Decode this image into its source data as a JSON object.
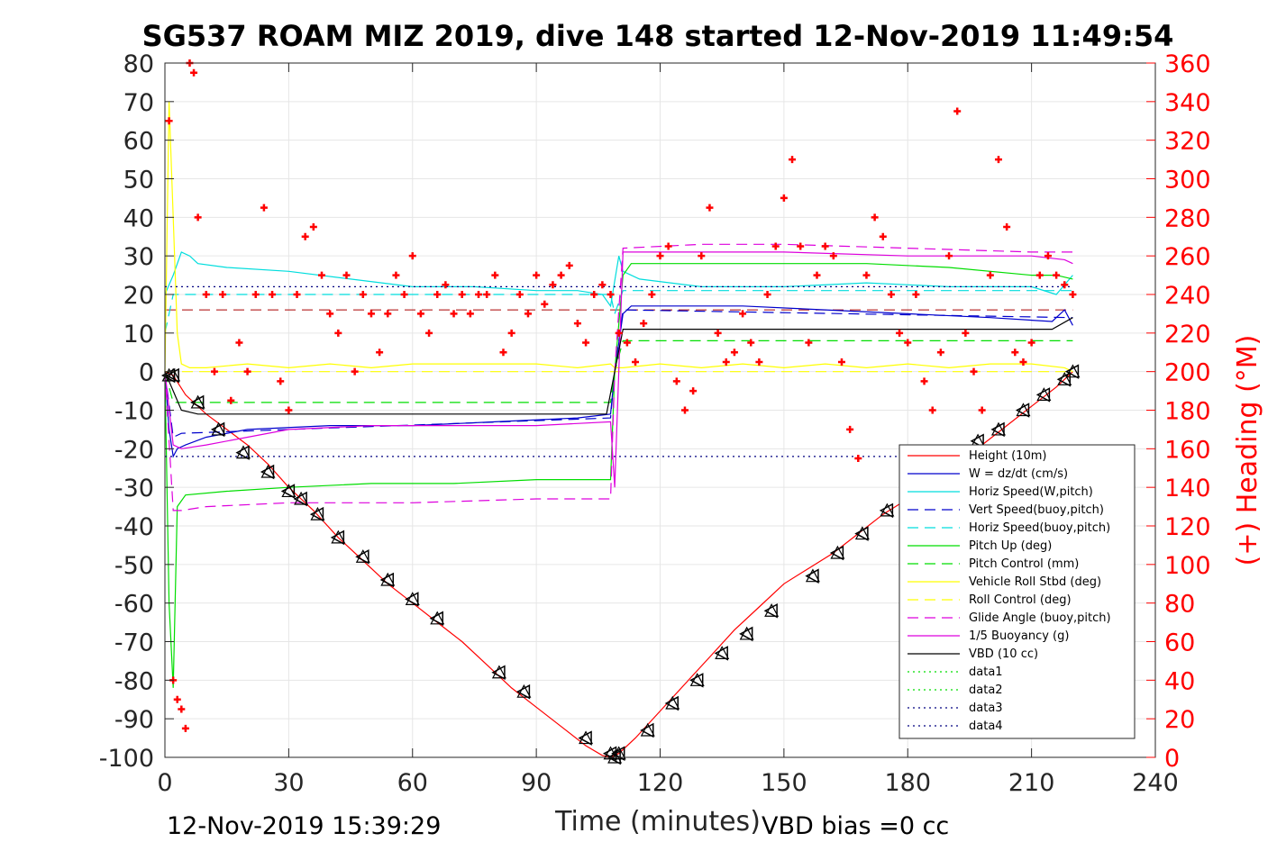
{
  "chart_data": {
    "type": "line",
    "title": "SG537 ROAM MIZ 2019, dive 148 started 12-Nov-2019 11:49:54",
    "xlabel": "Time (minutes)",
    "ylabel_right": "(+) Heading (°M)",
    "xlim": [
      0,
      240
    ],
    "ylim": [
      -100,
      80
    ],
    "ylim_right": [
      0,
      360
    ],
    "x_ticks": [
      "0",
      "30",
      "60",
      "90",
      "120",
      "150",
      "180",
      "210",
      "240"
    ],
    "y_ticks": [
      "80",
      "70",
      "60",
      "50",
      "40",
      "30",
      "20",
      "10",
      "0",
      "-10",
      "-20",
      "-30",
      "-40",
      "-50",
      "-60",
      "-70",
      "-80",
      "-90",
      "-100"
    ],
    "y_ticks_right": [
      "360",
      "340",
      "320",
      "300",
      "280",
      "260",
      "240",
      "220",
      "200",
      "180",
      "160",
      "140",
      "120",
      "100",
      "80",
      "60",
      "40",
      "20",
      "0"
    ],
    "grid": true,
    "legend_position": "bottom-right",
    "footer_left": "12-Nov-2019 15:39:29",
    "footer_right": "VBD bias =0 cc",
    "series": [
      {
        "name": "Height (10m)",
        "color": "#ff0000",
        "style": "solid",
        "x": [
          0,
          2,
          5,
          10,
          15,
          20,
          25,
          30,
          36,
          42,
          48,
          54,
          60,
          66,
          72,
          78,
          84,
          90,
          96,
          102,
          106,
          108,
          110,
          114,
          120,
          126,
          132,
          138,
          144,
          150,
          156,
          162,
          168,
          174,
          180,
          186,
          192,
          198,
          204,
          210,
          216,
          220
        ],
        "y": [
          0,
          -1,
          -6,
          -11,
          -15,
          -19,
          -24,
          -30,
          -36,
          -43,
          -49,
          -55,
          -60,
          -65,
          -70,
          -76,
          -82,
          -87,
          -92,
          -97,
          -99.5,
          -100,
          -99,
          -95,
          -88,
          -81,
          -74,
          -67,
          -61,
          -55,
          -51,
          -47,
          -42,
          -37,
          -33,
          -29,
          -24,
          -19,
          -14,
          -9,
          -4,
          0
        ]
      },
      {
        "name": "W = dz/dt (cm/s)",
        "color": "#0000cc",
        "style": "solid",
        "x": [
          0,
          1,
          2,
          3,
          5,
          10,
          20,
          40,
          60,
          80,
          100,
          108,
          109,
          111,
          113,
          120,
          140,
          160,
          180,
          200,
          215,
          218,
          220
        ],
        "y": [
          0,
          -15,
          -22,
          -20,
          -19,
          -17,
          -15,
          -14,
          -14,
          -13,
          -12,
          -11,
          0,
          15,
          17,
          17,
          17,
          16,
          15,
          14,
          13,
          16,
          12
        ]
      },
      {
        "name": "Horiz Speed(W,pitch)",
        "color": "#00dddd",
        "style": "solid",
        "x": [
          0,
          2,
          4,
          6,
          8,
          15,
          30,
          45,
          60,
          75,
          90,
          100,
          106,
          108,
          110,
          111,
          115,
          130,
          150,
          170,
          190,
          210,
          216,
          220
        ],
        "y": [
          20,
          25,
          31,
          30,
          28,
          27,
          26,
          24,
          22,
          22,
          21,
          21,
          20,
          17,
          30,
          26,
          24,
          22,
          22,
          23,
          22,
          22,
          20,
          25
        ]
      },
      {
        "name": "Vert Speed(buoy,pitch)",
        "color": "#0000cc",
        "style": "dashed",
        "x": [
          0,
          2,
          4,
          108,
          109,
          111,
          220
        ],
        "y": [
          0,
          -17,
          -16,
          -12,
          0,
          16,
          14
        ]
      },
      {
        "name": "Horiz Speed(buoy,pitch)",
        "color": "#00dddd",
        "style": "dashed",
        "x": [
          0,
          2,
          4,
          108,
          109,
          111,
          220
        ],
        "y": [
          10,
          20,
          20,
          20,
          15,
          21,
          21
        ]
      },
      {
        "name": "Pitch Up (deg)",
        "color": "#00dd00",
        "style": "solid",
        "x": [
          0,
          1,
          2,
          3,
          5,
          15,
          30,
          50,
          70,
          90,
          108,
          109,
          111,
          113,
          130,
          150,
          170,
          190,
          210,
          216,
          220
        ],
        "y": [
          0,
          -60,
          -82,
          -35,
          -32,
          -31,
          -30,
          -29,
          -29,
          -28,
          -28,
          0,
          25,
          28,
          28,
          28,
          28,
          27,
          25,
          25,
          24
        ]
      },
      {
        "name": "Pitch Control (mm)",
        "color": "#00dd00",
        "style": "dashed",
        "x": [
          0,
          2,
          4,
          108,
          109,
          111,
          220
        ],
        "y": [
          0,
          -8,
          -8,
          -8,
          0,
          8,
          8
        ]
      },
      {
        "name": "Vehicle Roll Stbd (deg)",
        "color": "#ffff00",
        "style": "solid",
        "x": [
          0,
          1,
          2,
          3,
          4,
          6,
          10,
          20,
          30,
          40,
          50,
          60,
          70,
          80,
          90,
          100,
          108,
          109,
          111,
          120,
          130,
          140,
          150,
          160,
          170,
          180,
          190,
          200,
          210,
          218,
          220
        ],
        "y": [
          0,
          70,
          40,
          10,
          2,
          1,
          1,
          2,
          1,
          2,
          1,
          2,
          2,
          2,
          2,
          1,
          2,
          1,
          1,
          2,
          1,
          2,
          1,
          2,
          1,
          2,
          1,
          2,
          2,
          1,
          0
        ]
      },
      {
        "name": "Roll Control (deg)",
        "color": "#ffff00",
        "style": "dashed",
        "x": [
          0,
          5,
          10,
          20,
          30,
          40,
          50,
          60,
          70,
          80,
          90,
          100,
          110,
          120,
          130,
          140,
          150,
          160,
          170,
          180,
          190,
          200,
          210,
          220
        ],
        "y": [
          0,
          0,
          0,
          0,
          0,
          0,
          0,
          0,
          0,
          0,
          0,
          0,
          0,
          0,
          0,
          0,
          0,
          0,
          0,
          0,
          0,
          0,
          0,
          0
        ]
      },
      {
        "name": "Glide Angle (buoy,pitch)",
        "color": "#dd00dd",
        "style": "dashed",
        "x": [
          0,
          2,
          4,
          10,
          30,
          60,
          90,
          108,
          109,
          111,
          130,
          150,
          180,
          210,
          220
        ],
        "y": [
          0,
          -36,
          -36,
          -35,
          -34,
          -34,
          -33,
          -33,
          0,
          32,
          33,
          33,
          32,
          31,
          31
        ]
      },
      {
        "name": "1/5 Buoyancy (g)",
        "color": "#dd00dd",
        "style": "solid",
        "x": [
          0,
          2,
          4,
          10,
          20,
          30,
          50,
          70,
          90,
          108,
          109,
          111,
          130,
          150,
          180,
          210,
          218,
          220
        ],
        "y": [
          0,
          -19,
          -20,
          -19,
          -17,
          -15,
          -14,
          -14,
          -14,
          -13,
          -30,
          31,
          31,
          31,
          30,
          30,
          29,
          28
        ]
      },
      {
        "name": "VBD (10 cc)",
        "color": "#000000",
        "style": "solid",
        "x": [
          0,
          2,
          4,
          8,
          107,
          109,
          111,
          215,
          220
        ],
        "y": [
          0,
          -5,
          -10,
          -11,
          -11,
          0,
          11,
          11,
          14
        ]
      },
      {
        "name": "data1",
        "color": "#00dd00",
        "style": "dotted",
        "x": [],
        "y": []
      },
      {
        "name": "data2",
        "color": "#00dd00",
        "style": "dotted",
        "x": [],
        "y": []
      },
      {
        "name": "data3",
        "color": "#000080",
        "style": "dotted",
        "x": [
          0,
          220
        ],
        "y": [
          -22,
          -22
        ]
      },
      {
        "name": "data4",
        "color": "#000080",
        "style": "dotted",
        "x": [
          0,
          220
        ],
        "y": [
          22,
          22
        ]
      }
    ],
    "reference_line": {
      "color": "#aa0000",
      "style": "dashed",
      "y": 16
    },
    "heading": {
      "color": "#ff0000",
      "marker": "+",
      "x": [
        1,
        2,
        3,
        4,
        5,
        6,
        7,
        8,
        10,
        12,
        14,
        16,
        18,
        20,
        22,
        24,
        26,
        28,
        30,
        32,
        34,
        36,
        38,
        40,
        42,
        44,
        46,
        48,
        50,
        52,
        54,
        56,
        58,
        60,
        62,
        64,
        66,
        68,
        70,
        72,
        74,
        76,
        78,
        80,
        82,
        84,
        86,
        88,
        90,
        92,
        94,
        96,
        98,
        100,
        102,
        104,
        106,
        108,
        110,
        112,
        114,
        116,
        118,
        120,
        122,
        124,
        126,
        128,
        130,
        132,
        134,
        136,
        138,
        140,
        142,
        144,
        146,
        148,
        150,
        152,
        154,
        156,
        158,
        160,
        162,
        164,
        166,
        168,
        170,
        172,
        174,
        176,
        178,
        180,
        182,
        184,
        186,
        188,
        190,
        192,
        194,
        196,
        198,
        200,
        202,
        204,
        206,
        208,
        210,
        212,
        214,
        216,
        218,
        220
      ],
      "y": [
        330,
        40,
        30,
        25,
        15,
        360,
        355,
        280,
        240,
        200,
        240,
        185,
        215,
        200,
        240,
        285,
        240,
        195,
        180,
        240,
        270,
        275,
        250,
        230,
        220,
        250,
        200,
        240,
        230,
        210,
        230,
        250,
        240,
        260,
        230,
        220,
        240,
        245,
        230,
        240,
        230,
        240,
        240,
        250,
        210,
        220,
        240,
        230,
        250,
        235,
        245,
        250,
        255,
        225,
        215,
        240,
        245,
        240,
        220,
        215,
        205,
        225,
        240,
        260,
        265,
        195,
        180,
        190,
        260,
        285,
        220,
        205,
        210,
        230,
        215,
        205,
        240,
        265,
        290,
        310,
        265,
        215,
        250,
        265,
        260,
        205,
        170,
        155,
        250,
        280,
        270,
        240,
        220,
        215,
        240,
        195,
        180,
        210,
        260,
        335,
        220,
        200,
        180,
        250,
        310,
        275,
        210,
        205,
        215,
        250,
        260,
        250,
        245,
        240
      ]
    },
    "vehicle_markers": {
      "x": [
        1,
        2,
        8,
        13,
        19,
        25,
        30,
        33,
        37,
        42,
        48,
        54,
        60,
        66,
        81,
        87,
        102,
        108,
        109,
        110,
        117,
        123,
        129,
        135,
        141,
        147,
        157,
        163,
        169,
        175,
        197,
        202,
        208,
        213,
        218,
        220
      ],
      "y": [
        -1,
        -1,
        -8,
        -15,
        -21,
        -26,
        -31,
        -33,
        -37,
        -43,
        -48,
        -54,
        -59,
        -64,
        -78,
        -83,
        -95,
        -99,
        -100,
        -99,
        -93,
        -86,
        -80,
        -73,
        -68,
        -62,
        -53,
        -47,
        -42,
        -36,
        -18,
        -15,
        -10,
        -6,
        -2,
        0
      ]
    }
  }
}
